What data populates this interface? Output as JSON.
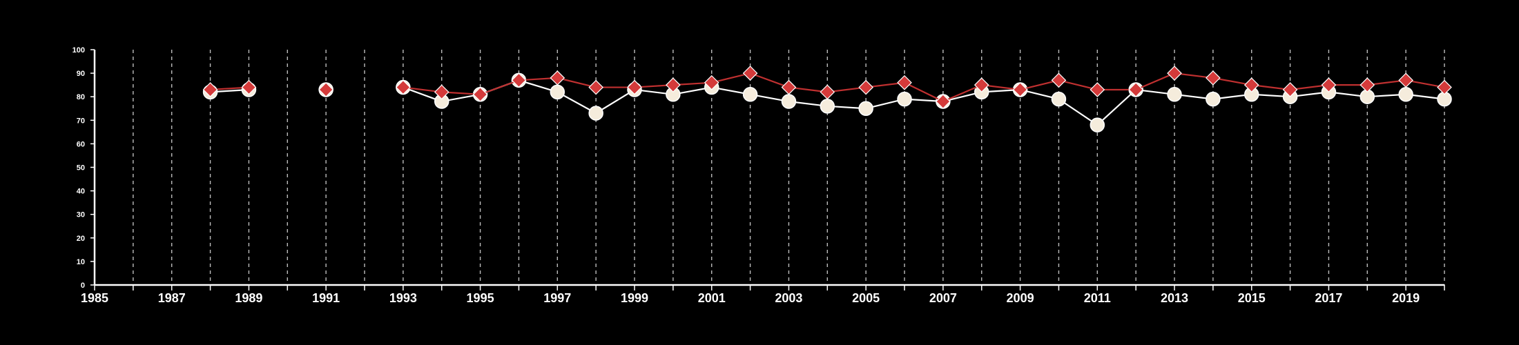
{
  "chart_data": {
    "type": "line",
    "title": "",
    "xlabel": "",
    "ylabel": "",
    "xlim": [
      1985,
      2020
    ],
    "ylim": [
      0,
      100
    ],
    "x_ticks": [
      1985,
      1987,
      1989,
      1991,
      1993,
      1995,
      1997,
      1999,
      2001,
      2003,
      2005,
      2007,
      2009,
      2011,
      2013,
      2015,
      2017,
      2019
    ],
    "y_ticks": [
      0,
      10,
      20,
      30,
      40,
      50,
      60,
      70,
      80,
      90,
      100
    ],
    "grid": "vertical dashed lines at every year",
    "background": "#000000",
    "legend": "none",
    "series": [
      {
        "color": "#f5ecdc",
        "line_color": "#ffffff",
        "marker": "circle",
        "points": [
          [
            1988,
            82
          ],
          [
            1989,
            83
          ],
          [
            1991,
            83
          ],
          [
            1993,
            84
          ],
          [
            1994,
            78
          ],
          [
            1995,
            81
          ],
          [
            1996,
            87
          ],
          [
            1997,
            82
          ],
          [
            1998,
            73
          ],
          [
            1999,
            83
          ],
          [
            2000,
            81
          ],
          [
            2001,
            84
          ],
          [
            2002,
            81
          ],
          [
            2003,
            78
          ],
          [
            2004,
            76
          ],
          [
            2005,
            75
          ],
          [
            2006,
            79
          ],
          [
            2007,
            78
          ],
          [
            2008,
            82
          ],
          [
            2009,
            83
          ],
          [
            2010,
            79
          ],
          [
            2011,
            68
          ],
          [
            2012,
            83
          ],
          [
            2013,
            81
          ],
          [
            2014,
            79
          ],
          [
            2015,
            81
          ],
          [
            2016,
            80
          ],
          [
            2017,
            82
          ],
          [
            2018,
            80
          ],
          [
            2019,
            81
          ],
          [
            2020,
            79
          ]
        ]
      },
      {
        "color": "#d43a3a",
        "line_color": "#c03030",
        "marker": "diamond",
        "points": [
          [
            1988,
            83
          ],
          [
            1989,
            84
          ],
          [
            1991,
            83
          ],
          [
            1993,
            84
          ],
          [
            1994,
            82
          ],
          [
            1995,
            81
          ],
          [
            1996,
            87
          ],
          [
            1997,
            88
          ],
          [
            1998,
            84
          ],
          [
            1999,
            84
          ],
          [
            2000,
            85
          ],
          [
            2001,
            86
          ],
          [
            2002,
            90
          ],
          [
            2003,
            84
          ],
          [
            2004,
            82
          ],
          [
            2005,
            84
          ],
          [
            2006,
            86
          ],
          [
            2007,
            78
          ],
          [
            2008,
            85
          ],
          [
            2009,
            83
          ],
          [
            2010,
            87
          ],
          [
            2011,
            83
          ],
          [
            2012,
            83
          ],
          [
            2013,
            90
          ],
          [
            2014,
            88
          ],
          [
            2015,
            85
          ],
          [
            2016,
            83
          ],
          [
            2017,
            85
          ],
          [
            2018,
            85
          ],
          [
            2019,
            87
          ],
          [
            2020,
            84
          ]
        ]
      }
    ]
  }
}
